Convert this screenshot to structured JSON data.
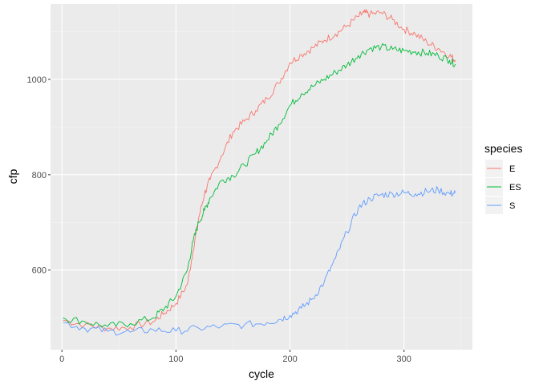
{
  "chart_data": {
    "type": "line",
    "xlabel": "cycle",
    "ylabel": "cfp",
    "xlim": [
      -10,
      360
    ],
    "ylim": [
      433,
      1158
    ],
    "x_ticks": [
      0,
      100,
      200,
      300
    ],
    "x_tick_labels": [
      "0",
      "100",
      "200",
      "300"
    ],
    "y_ticks": [
      600,
      800,
      1000
    ],
    "y_tick_labels": [
      "600",
      "800",
      "1000"
    ],
    "grid": true,
    "legend": {
      "title": "species",
      "position": "right"
    },
    "series": [
      {
        "name": "E",
        "color": "#f8766d",
        "x": [
          1,
          20,
          40,
          60,
          80,
          90,
          100,
          110,
          115,
          120,
          125,
          130,
          140,
          150,
          160,
          170,
          180,
          190,
          200,
          210,
          220,
          230,
          240,
          250,
          260,
          265,
          270,
          280,
          290,
          300,
          310,
          320,
          330,
          340,
          345
        ],
        "y": [
          495,
          485,
          478,
          480,
          492,
          510,
          530,
          570,
          640,
          710,
          760,
          790,
          840,
          890,
          912,
          935,
          960,
          992,
          1035,
          1052,
          1066,
          1082,
          1095,
          1112,
          1132,
          1140,
          1136,
          1140,
          1125,
          1105,
          1095,
          1078,
          1065,
          1050,
          1040
        ]
      },
      {
        "name": "ES",
        "color": "#00ba38",
        "x": [
          1,
          20,
          40,
          60,
          80,
          90,
          100,
          110,
          115,
          120,
          125,
          130,
          140,
          150,
          160,
          170,
          180,
          190,
          200,
          210,
          220,
          230,
          240,
          250,
          260,
          270,
          280,
          290,
          300,
          310,
          320,
          330,
          340,
          345
        ],
        "y": [
          500,
          492,
          482,
          488,
          500,
          520,
          545,
          600,
          660,
          700,
          725,
          752,
          788,
          798,
          820,
          845,
          872,
          905,
          945,
          970,
          985,
          1000,
          1015,
          1030,
          1050,
          1065,
          1068,
          1063,
          1060,
          1058,
          1055,
          1050,
          1040,
          1032
        ]
      },
      {
        "name": "S",
        "color": "#619cff",
        "x": [
          1,
          20,
          40,
          60,
          80,
          100,
          120,
          140,
          160,
          180,
          190,
          200,
          210,
          220,
          230,
          240,
          250,
          260,
          270,
          280,
          290,
          300,
          310,
          320,
          330,
          340,
          345
        ],
        "y": [
          490,
          478,
          472,
          470,
          475,
          472,
          478,
          482,
          485,
          490,
          496,
          505,
          520,
          540,
          575,
          625,
          680,
          730,
          750,
          758,
          760,
          762,
          760,
          765,
          768,
          760,
          762
        ]
      }
    ]
  }
}
